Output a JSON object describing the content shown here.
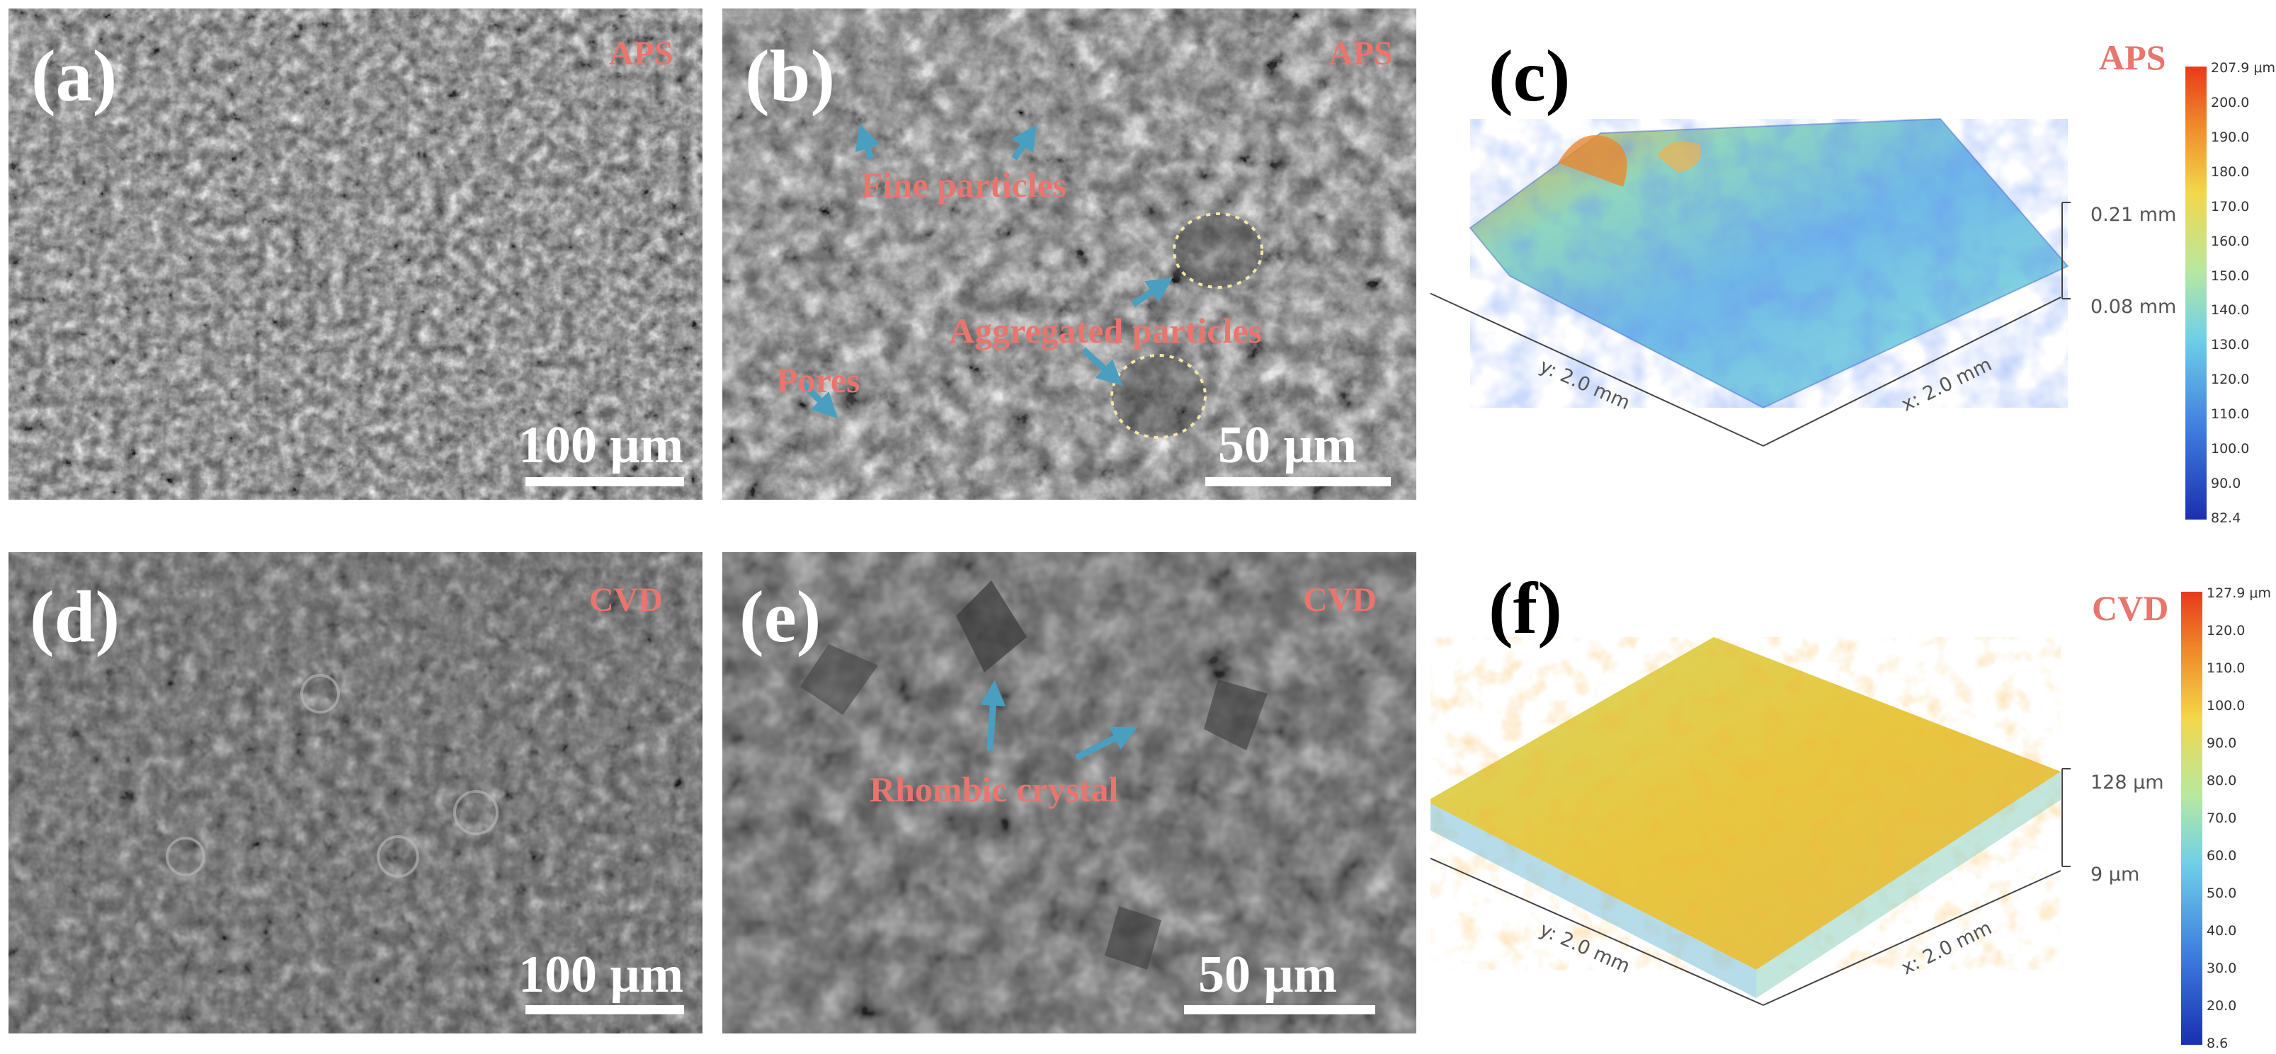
{
  "panels": {
    "a": {
      "label": "(a)",
      "tag": "APS",
      "scale": "100 μm"
    },
    "b": {
      "label": "(b)",
      "tag": "APS",
      "scale": "50 μm",
      "annotations": {
        "fine": "Fine particles",
        "aggregated": "Aggregated particles",
        "pores": "Pores"
      }
    },
    "c": {
      "label": "(c)",
      "tag": "APS",
      "z_top": "0.21 mm",
      "z_bottom": "0.08 mm",
      "y_axis": "y: 2.0 mm",
      "x_axis": "x: 2.0 mm",
      "colorbar": [
        "207.9 μm",
        "200.0",
        "190.0",
        "180.0",
        "170.0",
        "160.0",
        "150.0",
        "140.0",
        "130.0",
        "120.0",
        "110.0",
        "100.0",
        "90.0",
        "82.4"
      ]
    },
    "d": {
      "label": "(d)",
      "tag": "CVD",
      "scale": "100 μm"
    },
    "e": {
      "label": "(e)",
      "tag": "CVD",
      "scale": "50 μm",
      "annotations": {
        "rhombic": "Rhombic crystal"
      }
    },
    "f": {
      "label": "(f)",
      "tag": "CVD",
      "z_top": "128 μm",
      "z_bottom": "9 μm",
      "y_axis": "y: 2.0 mm",
      "x_axis": "x: 2.0 mm",
      "colorbar": [
        "127.9 μm",
        "120.0",
        "110.0",
        "100.0",
        "90.0",
        "80.0",
        "70.0",
        "60.0",
        "50.0",
        "40.0",
        "30.0",
        "20.0",
        "8.6"
      ]
    }
  },
  "colors": {
    "annotation": "#e8756e",
    "arrow": "#4a9fc0"
  }
}
